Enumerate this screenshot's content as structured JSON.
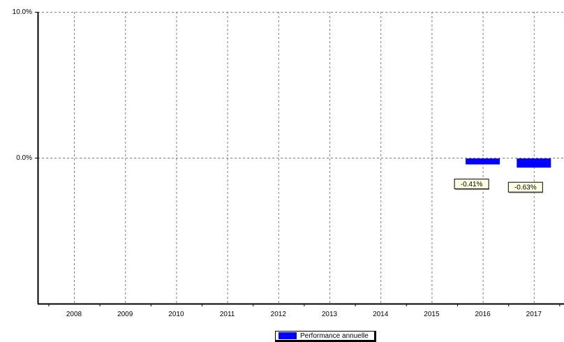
{
  "chart_data": {
    "type": "bar",
    "categories": [
      "2008",
      "2009",
      "2010",
      "2011",
      "2012",
      "2013",
      "2014",
      "2015",
      "2016",
      "2017"
    ],
    "series": [
      {
        "name": "Performance annuelle",
        "values": [
          null,
          null,
          null,
          null,
          null,
          null,
          null,
          null,
          -0.41,
          -0.63
        ]
      }
    ],
    "data_labels": [
      "",
      "",
      "",
      "",
      "",
      "",
      "",
      "",
      "-0.41%",
      "-0.63%"
    ],
    "y_tick_labels": [
      "10.0%",
      "0.0%"
    ],
    "y_ticks": [
      10,
      0
    ],
    "ylim": [
      -10,
      10
    ],
    "grid": true,
    "legend_position": "bottom-center",
    "colors": {
      "bar": "#0000ff",
      "label_bg": "#ffffe1",
      "grid": "#808080",
      "axis": "#000000"
    }
  }
}
